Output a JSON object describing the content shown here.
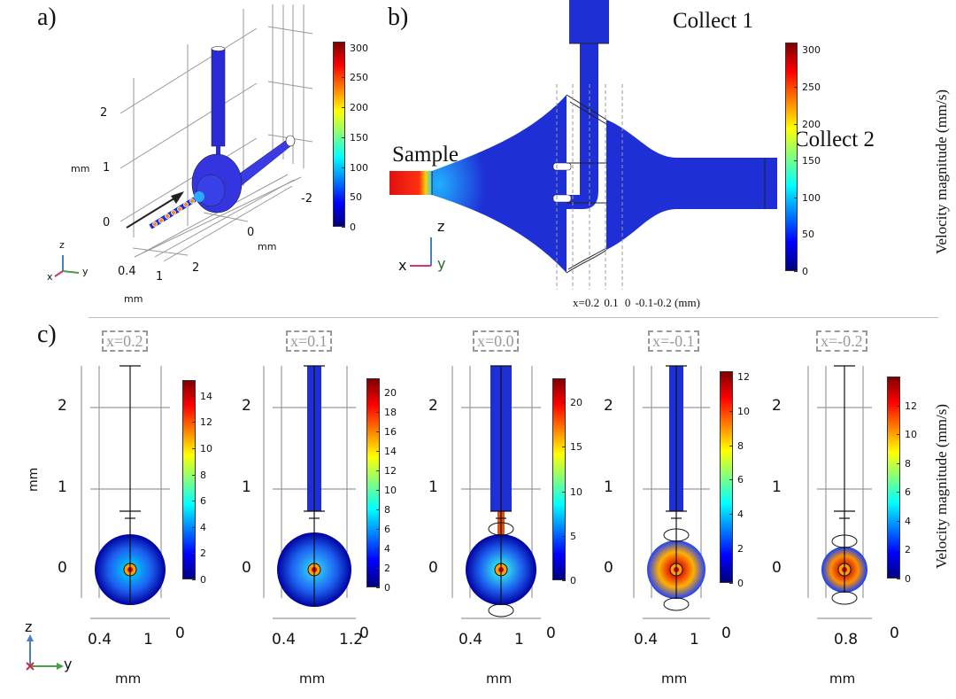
{
  "panel_a": {
    "label": "a)",
    "colorbar": {
      "ticks": [
        "300",
        "250",
        "200",
        "150",
        "100",
        "50",
        "0"
      ],
      "min": 0,
      "max": 310
    },
    "z_ticks": [
      "2",
      "1",
      "0"
    ],
    "z_unit": "mm",
    "y_ticks": [
      "-2",
      "0"
    ],
    "y_unit": "mm",
    "x_ticks": [
      "0.4",
      "1",
      "2"
    ],
    "x_unit": "mm",
    "triad": {
      "z": "z",
      "x": "x",
      "y": "y"
    }
  },
  "panel_b": {
    "label": "b)",
    "collect1": "Collect 1",
    "collect2": "Collect 2",
    "sample": "Sample",
    "section_caption": {
      "prefix": "x=",
      "values": [
        "0.2",
        "0.1",
        "0",
        "-0.1",
        "-0.2"
      ],
      "unit": "(mm)"
    },
    "colorbar": {
      "ticks": [
        "300",
        "250",
        "200",
        "150",
        "100",
        "50",
        "0"
      ],
      "min": 0,
      "max": 310,
      "title": "Velocity magnitude (mm/s)"
    },
    "triad": {
      "z": "z",
      "x": "x",
      "y": "y"
    }
  },
  "panel_c": {
    "label": "c)",
    "z_unit": "mm",
    "colorbar_title": "Velocity magnitude (mm/s)",
    "triad": {
      "z": "z",
      "x": "x",
      "y": "y"
    },
    "sections": [
      {
        "title": "x=0.2",
        "z_ticks": [
          "2",
          "1",
          "0"
        ],
        "y_ticks": [
          "0.4",
          "1"
        ],
        "x_tick": "0",
        "unit": "mm",
        "colorbar": {
          "ticks": [
            "14",
            "12",
            "10",
            "8",
            "6",
            "4",
            "2",
            "0"
          ],
          "max": 15.2
        }
      },
      {
        "title": "x=0.1",
        "z_ticks": [
          "2",
          "1",
          "0"
        ],
        "y_ticks": [
          "0.4",
          "1.2"
        ],
        "x_tick": "0",
        "unit": "mm",
        "colorbar": {
          "ticks": [
            "20",
            "18",
            "16",
            "14",
            "12",
            "10",
            "8",
            "6",
            "4",
            "2",
            "0"
          ],
          "max": 21.5
        }
      },
      {
        "title": "x=0.0",
        "z_ticks": [
          "2",
          "1",
          "0"
        ],
        "y_ticks": [
          "0.4",
          "1"
        ],
        "x_tick": "0",
        "unit": "mm",
        "colorbar": {
          "ticks": [
            "20",
            "15",
            "10",
            "5",
            "0"
          ],
          "max": 22.7
        }
      },
      {
        "title": "x=-0.1",
        "z_ticks": [
          "2",
          "1",
          "0"
        ],
        "y_ticks": [
          "0.4",
          "1"
        ],
        "x_tick": "0",
        "unit": "mm",
        "colorbar": {
          "ticks": [
            "12",
            "10",
            "8",
            "6",
            "4",
            "2",
            "0"
          ],
          "max": 12.3
        }
      },
      {
        "title": "x=-0.2",
        "z_ticks": [
          "2",
          "1",
          "0"
        ],
        "y_ticks": [
          "0.8"
        ],
        "x_tick": "0",
        "unit": "mm",
        "colorbar": {
          "ticks": [
            "12",
            "10",
            "8",
            "6",
            "4",
            "2",
            "0"
          ],
          "max": 14
        }
      }
    ]
  },
  "colors": {
    "low": "#00007f",
    "blue": "#1f2fd6",
    "high": "#7f0000"
  }
}
